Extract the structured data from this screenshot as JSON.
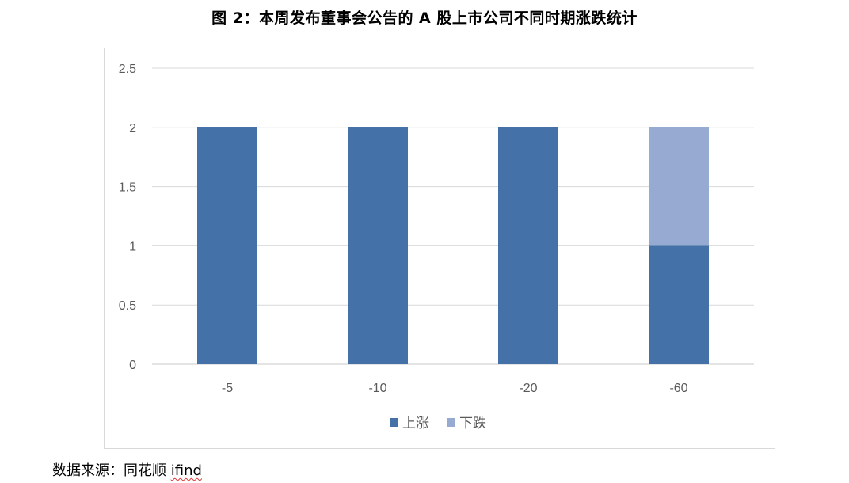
{
  "title": "图 2：本周发布董事会公告的 A 股上市公司不同时期涨跌统计",
  "source": {
    "label": "数据来源：同花顺 ",
    "tool": "ifind"
  },
  "chart_data": {
    "type": "bar",
    "stacked": true,
    "categories": [
      "-5",
      "-10",
      "-20",
      "-60"
    ],
    "series": [
      {
        "name": "上涨",
        "values": [
          2,
          2,
          2,
          1
        ],
        "color": "#4472a8"
      },
      {
        "name": "下跌",
        "values": [
          0,
          0,
          0,
          1
        ],
        "color": "#96aad2"
      }
    ],
    "ylim": [
      0,
      2.5
    ],
    "yticks": [
      "0",
      "0.5",
      "1",
      "1.5",
      "2",
      "2.5"
    ],
    "grid": true,
    "legend": "bottom"
  }
}
